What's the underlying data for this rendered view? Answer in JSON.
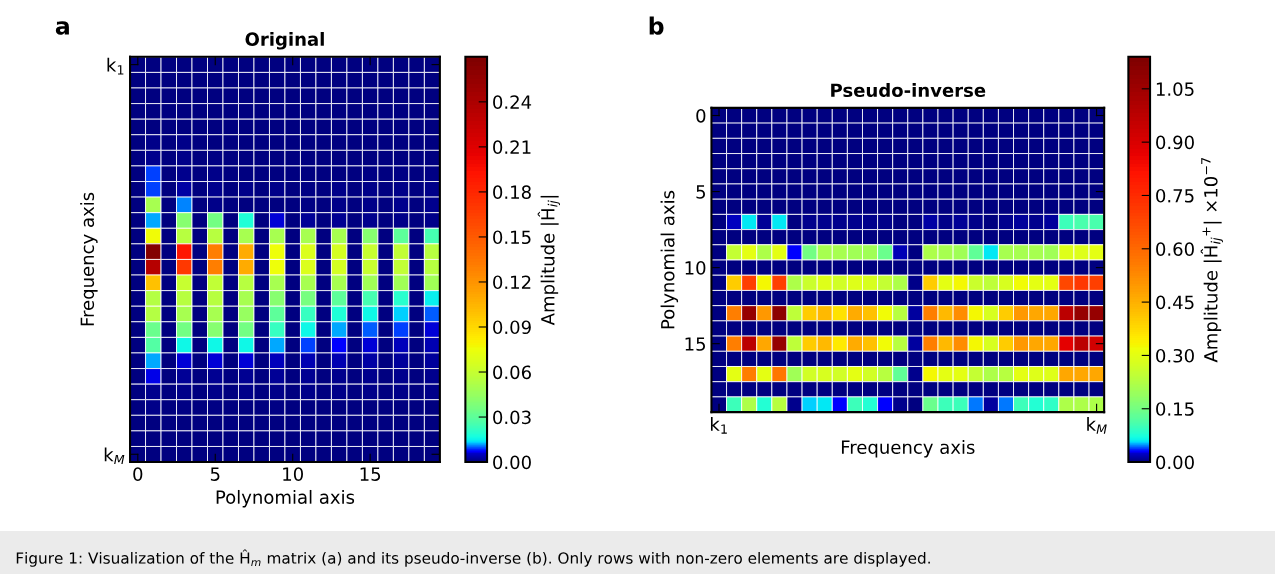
{
  "chart_data": [
    {
      "type": "heatmap",
      "title": "Original",
      "xlabel": "Polynomial axis",
      "ylabel": "Frequency axis",
      "clabel": "Amplitude |Ĥ$_{ij}$|",
      "annotations": [
        "a"
      ],
      "categories": [
        "0",
        null,
        null,
        null,
        null,
        "5",
        null,
        null,
        null,
        null,
        "10",
        null,
        null,
        null,
        null,
        "15",
        null,
        null,
        null,
        null
      ],
      "y_categories": [
        "k$_{1}$",
        null,
        null,
        null,
        null,
        null,
        null,
        null,
        null,
        null,
        null,
        null,
        null,
        null,
        null,
        null,
        null,
        null,
        null,
        null,
        null,
        null,
        null,
        null,
        null,
        "k$_{M}$"
      ],
      "clim": [
        0,
        0.27
      ],
      "cticks": [
        {
          "value": 0,
          "label": "0.00"
        },
        0.03,
        0.06,
        0.09,
        0.12,
        0.15,
        0.18,
        0.21,
        0.24
      ],
      "cells": [
        [
          0,
          0,
          0,
          0,
          0,
          0,
          0,
          0,
          0,
          0,
          0,
          0,
          0,
          0,
          0,
          0,
          0,
          0,
          0,
          0
        ],
        [
          0,
          0,
          0,
          0,
          0,
          0,
          0,
          0,
          0,
          0,
          0,
          0,
          0,
          0,
          0,
          0,
          0,
          0,
          0,
          0
        ],
        [
          0,
          0,
          0,
          0,
          0,
          0,
          0,
          0,
          0,
          0,
          0,
          0,
          0,
          0,
          0,
          0,
          0,
          0,
          0,
          0
        ],
        [
          0,
          0.0002,
          0,
          0.0002,
          0,
          0.0002,
          0,
          0.0002,
          0,
          0.0002,
          0,
          0.0001,
          0,
          0.0001,
          0,
          0.0001,
          0,
          0.0001,
          0,
          0.0001
        ],
        [
          0,
          0.0004,
          0,
          0.0003,
          0,
          0.0003,
          0,
          0.0002,
          0,
          0.0002,
          0,
          0.0002,
          0,
          0.0002,
          0,
          0.0002,
          0,
          0.0002,
          0,
          0.0002
        ],
        [
          0,
          0.0008,
          0,
          0.0008,
          0,
          0.0005,
          0,
          0.0003,
          0,
          0.0003,
          0,
          0.0002,
          0,
          0.0002,
          0,
          0.0002,
          0,
          0.0002,
          0,
          0.0002
        ],
        [
          0,
          0.0012,
          0,
          0.0009,
          0,
          0.0006,
          0,
          0.0004,
          0,
          0.0003,
          0,
          0.0003,
          0,
          0.0003,
          0,
          0.0003,
          0,
          0.0003,
          0,
          0.0004
        ],
        [
          0,
          0.009,
          0,
          0.0015,
          0,
          0.0008,
          0,
          0.0005,
          0,
          0.0004,
          0,
          0.0005,
          0,
          0.0005,
          0,
          0.0007,
          0,
          0.0006,
          0,
          0.0007
        ],
        [
          0,
          0.009,
          0,
          0.003,
          0,
          0.0015,
          0,
          0.0009,
          0,
          0.0008,
          0,
          0.0007,
          0,
          0.0008,
          0,
          0.0008,
          0,
          0.0008,
          0,
          0.001
        ],
        [
          0,
          0.05,
          0,
          0.011,
          0,
          0.0009,
          0,
          0.0003,
          0,
          0.0005,
          0,
          0.0007,
          0,
          0.001,
          0,
          0.001,
          0,
          0.0012,
          0,
          0.0013
        ],
        [
          0,
          0.012,
          0,
          0.04,
          0,
          0.035,
          0,
          0.018,
          0,
          0.006,
          0,
          0.002,
          0,
          0.0018,
          0,
          0.0013,
          0,
          0.0009,
          0,
          0.0009
        ],
        [
          0,
          0.076,
          0,
          0.055,
          0,
          0.055,
          0,
          0.05,
          0,
          0.05,
          0,
          0.05,
          0,
          0.05,
          0,
          0.04,
          0,
          0.03,
          0,
          0.025
        ],
        [
          0,
          0.265,
          0,
          0.19,
          0,
          0.13,
          0,
          0.11,
          0,
          0.075,
          0,
          0.068,
          0,
          0.065,
          0,
          0.06,
          0,
          0.058,
          0,
          0.055
        ],
        [
          0,
          0.235,
          0,
          0.17,
          0,
          0.13,
          0,
          0.11,
          0,
          0.075,
          0,
          0.068,
          0,
          0.065,
          0,
          0.06,
          0,
          0.058,
          0,
          0.055
        ],
        [
          0,
          0.1,
          0,
          0.06,
          0,
          0.058,
          0,
          0.055,
          0,
          0.05,
          0,
          0.05,
          0,
          0.05,
          0,
          0.048,
          0,
          0.048,
          0,
          0.048
        ],
        [
          0,
          0.054,
          0,
          0.055,
          0,
          0.055,
          0,
          0.05,
          0,
          0.04,
          0,
          0.036,
          0,
          0.03,
          0,
          0.025,
          0,
          0.02,
          0,
          0.015
        ],
        [
          0,
          0.054,
          0,
          0.05,
          0,
          0.05,
          0,
          0.045,
          0,
          0.03,
          0,
          0.022,
          0,
          0.018,
          0,
          0.016,
          0,
          0.013,
          0,
          0.01
        ],
        [
          0,
          0.033,
          0,
          0.035,
          0,
          0.04,
          0,
          0.035,
          0,
          0.022,
          0,
          0.016,
          0,
          0.012,
          0,
          0.01,
          0,
          0.009,
          0,
          0.006
        ],
        [
          0,
          0.028,
          0,
          0.016,
          0,
          0.016,
          0,
          0.016,
          0,
          0.012,
          0,
          0.009,
          0,
          0.007,
          0,
          0.006,
          0,
          0.005,
          0,
          0.004
        ],
        [
          0,
          0.012,
          0,
          0.006,
          0,
          0.006,
          0,
          0.006,
          0,
          0.005,
          0,
          0.004,
          0,
          0.004,
          0,
          0.003,
          0,
          0.0025,
          0,
          0.0025
        ],
        [
          0,
          0.0065,
          0,
          0.002,
          0,
          0.0018,
          0,
          0.0018,
          0,
          0.002,
          0,
          0.0016,
          0,
          0.0015,
          0,
          0.0013,
          0,
          0.0012,
          0,
          0.0012
        ],
        [
          0,
          0.0015,
          0,
          0.0008,
          0,
          0.0008,
          0,
          0.0008,
          0,
          0.0008,
          0,
          0.0008,
          0,
          0.0008,
          0,
          0.0008,
          0,
          0.0008,
          0,
          0.0008
        ],
        [
          0,
          0.0008,
          0,
          0.0006,
          0,
          0.0006,
          0,
          0.0005,
          0,
          0.0006,
          0,
          0.0005,
          0,
          0.0005,
          0,
          0.0005,
          0,
          0.0005,
          0,
          0.0005
        ],
        [
          0,
          0.0005,
          0,
          0.0004,
          0,
          0.0004,
          0,
          0.0004,
          0,
          0.0004,
          0,
          0.0004,
          0,
          0.0004,
          0,
          0.0004,
          0,
          0.0004,
          0,
          0.0004
        ],
        [
          0,
          0.0003,
          0,
          0.0003,
          0,
          0.0003,
          0,
          0.0003,
          0,
          0.0003,
          0,
          0.0003,
          0,
          0.0003,
          0,
          0.0003,
          0,
          0.0003,
          0,
          0.0003
        ],
        [
          0,
          0.0002,
          0,
          0.0002,
          0,
          0.0002,
          0,
          0.0002,
          0,
          0.0002,
          0,
          0.0002,
          0,
          0.0002,
          0,
          0.0002,
          0,
          0.0002,
          0,
          0.0002
        ]
      ]
    },
    {
      "type": "heatmap",
      "title": "Pseudo-inverse",
      "xlabel": "Frequency axis",
      "ylabel": "Polynomial axis",
      "clabel": "Amplitude |Ĥ$_{ij}$$^{+}$| ×10$^{−7}$",
      "annotations": [
        "b",
        "Figure 1: Visualization of the Ĥ$_{m}$ matrix (a) and its pseudo-inverse (b). Only rows with non-zero elements are displayed."
      ],
      "categories": [
        "k$_{1}$",
        null,
        null,
        null,
        null,
        null,
        null,
        null,
        null,
        null,
        null,
        null,
        null,
        null,
        null,
        null,
        null,
        null,
        null,
        null,
        null,
        null,
        null,
        null,
        null,
        "k$_{M}$"
      ],
      "y_categories": [
        "0",
        null,
        null,
        null,
        null,
        "5",
        null,
        null,
        null,
        null,
        "10",
        null,
        null,
        null,
        null,
        "15",
        null,
        null,
        null,
        null
      ],
      "clim": [
        0,
        1.14
      ],
      "cticks": [
        {
          "value": 0,
          "label": "0.00"
        },
        0.15,
        {
          "value": 0.3,
          "label": "0.30"
        },
        0.45,
        {
          "value": 0.6,
          "label": "0.60"
        },
        0.75,
        {
          "value": 0.9,
          "label": "0.90"
        },
        1.05
      ],
      "cells": [
        [
          0.001,
          0,
          0,
          0,
          0,
          0,
          0,
          0,
          0,
          0,
          0,
          0,
          0,
          0,
          0,
          0,
          0,
          0,
          0,
          0,
          0,
          0,
          0,
          0,
          0,
          0
        ],
        [
          0,
          0,
          0,
          0,
          0,
          0,
          0,
          0,
          0,
          0,
          0,
          0,
          0,
          0,
          0,
          0,
          0,
          0,
          0,
          0,
          0,
          0,
          0,
          0,
          0,
          0
        ],
        [
          0,
          0,
          0,
          0,
          0,
          0,
          0,
          0,
          0,
          0,
          0,
          0,
          0,
          0,
          0,
          0,
          0,
          0,
          0,
          0,
          0,
          0,
          0,
          0,
          0,
          0
        ],
        [
          0,
          0,
          0,
          0,
          0,
          0,
          0,
          0,
          0,
          0,
          0,
          0,
          0,
          0,
          0,
          0,
          0,
          0,
          0,
          0,
          0,
          0,
          0,
          0,
          0,
          0
        ],
        [
          0,
          0,
          0,
          0,
          0,
          0,
          0,
          0,
          0,
          0,
          0,
          0,
          0,
          0,
          0,
          0,
          0,
          0,
          0,
          0,
          0,
          0,
          0,
          0,
          0,
          0
        ],
        [
          0,
          0.002,
          0.002,
          0,
          0.001,
          0,
          0,
          0,
          0,
          0,
          0,
          0,
          0,
          0,
          0,
          0,
          0,
          0,
          0,
          0,
          0,
          0,
          0,
          0.002,
          0.002,
          0.001
        ],
        [
          0,
          0,
          0,
          0,
          0,
          0,
          0,
          0,
          0,
          0,
          0,
          0,
          0,
          0,
          0,
          0,
          0,
          0,
          0,
          0,
          0,
          0,
          0,
          0,
          0,
          0
        ],
        [
          0,
          0.022,
          0.06,
          0.008,
          0.06,
          0.002,
          0.005,
          0.006,
          0.005,
          0.006,
          0.006,
          0.004,
          0.002,
          0.0005,
          0.013,
          0.004,
          0.008,
          0.004,
          0.002,
          0.006,
          0.009,
          0.006,
          0.009,
          0.1,
          0.11,
          0.11
        ],
        [
          0,
          0,
          0,
          0,
          0,
          0,
          0,
          0,
          0,
          0,
          0,
          0,
          0,
          0,
          0,
          0,
          0,
          0,
          0,
          0,
          0,
          0,
          0,
          0,
          0,
          0
        ],
        [
          0,
          0.25,
          0.3,
          0.22,
          0.3,
          0.03,
          0.15,
          0.21,
          0.21,
          0.2,
          0.2,
          0.14,
          0.02,
          0.002,
          0.22,
          0.21,
          0.2,
          0.13,
          0.06,
          0.21,
          0.21,
          0.21,
          0.2,
          0.29,
          0.29,
          0.3
        ],
        [
          0,
          0,
          0,
          0,
          0,
          0,
          0,
          0,
          0,
          0,
          0,
          0,
          0,
          0,
          0,
          0,
          0,
          0,
          0,
          0,
          0,
          0,
          0,
          0,
          0,
          0
        ],
        [
          0,
          0.4,
          0.7,
          0.33,
          0.7,
          0.22,
          0.26,
          0.29,
          0.27,
          0.29,
          0.28,
          0.25,
          0.22,
          0.004,
          0.4,
          0.3,
          0.33,
          0.26,
          0.24,
          0.28,
          0.32,
          0.3,
          0.3,
          0.68,
          0.72,
          0.7
        ],
        [
          0,
          0,
          0,
          0,
          0,
          0,
          0,
          0,
          0,
          0,
          0,
          0,
          0,
          0,
          0,
          0,
          0,
          0,
          0,
          0,
          0,
          0,
          0,
          0,
          0,
          0
        ],
        [
          0,
          0.55,
          1.07,
          0.5,
          1.1,
          0.24,
          0.4,
          0.43,
          0.36,
          0.46,
          0.42,
          0.32,
          0.23,
          0.012,
          0.55,
          0.43,
          0.52,
          0.33,
          0.28,
          0.4,
          0.5,
          0.47,
          0.47,
          0.98,
          1.07,
          1.07
        ],
        [
          0,
          0,
          0,
          0,
          0,
          0,
          0,
          0,
          0,
          0,
          0,
          0,
          0,
          0,
          0,
          0,
          0,
          0,
          0,
          0,
          0,
          0,
          0,
          0,
          0,
          0
        ],
        [
          0,
          0.55,
          0.98,
          0.47,
          1.07,
          0.24,
          0.4,
          0.43,
          0.35,
          0.46,
          0.42,
          0.32,
          0.23,
          0.012,
          0.55,
          0.43,
          0.52,
          0.33,
          0.28,
          0.4,
          0.5,
          0.47,
          0.47,
          0.88,
          0.98,
          0.92
        ],
        [
          0,
          0,
          0,
          0,
          0,
          0,
          0,
          0,
          0,
          0,
          0,
          0,
          0,
          0,
          0,
          0,
          0,
          0,
          0,
          0,
          0,
          0,
          0,
          0,
          0,
          0
        ],
        [
          0,
          0.3,
          0.55,
          0.3,
          0.57,
          0.2,
          0.27,
          0.28,
          0.27,
          0.3,
          0.27,
          0.23,
          0.13,
          0.005,
          0.33,
          0.3,
          0.3,
          0.25,
          0.22,
          0.23,
          0.3,
          0.29,
          0.29,
          0.47,
          0.47,
          0.47
        ],
        [
          0,
          0,
          0,
          0,
          0,
          0,
          0,
          0,
          0,
          0,
          0,
          0,
          0,
          0,
          0,
          0,
          0,
          0,
          0,
          0,
          0,
          0,
          0,
          0,
          0,
          0
        ],
        [
          0,
          0.1,
          0.22,
          0.08,
          0.23,
          0.005,
          0.055,
          0.06,
          0.03,
          0.1,
          0.08,
          0.03,
          0.005,
          0.001,
          0.14,
          0.1,
          0.1,
          0.045,
          0.012,
          0.045,
          0.1,
          0.08,
          0.09,
          0.22,
          0.22,
          0.22
        ]
      ]
    }
  ]
}
